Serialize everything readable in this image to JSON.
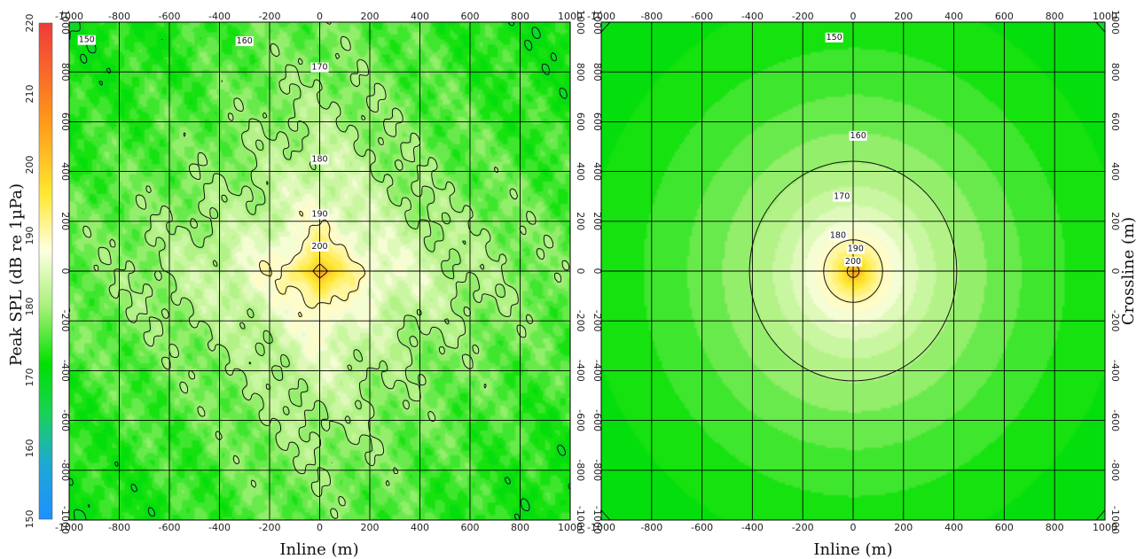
{
  "colorbar": {
    "label": "Peak SPL (dB re 1µPa)",
    "ticks": [
      "150",
      "160",
      "170",
      "180",
      "190",
      "200",
      "210",
      "220"
    ],
    "min": 150,
    "max": 220,
    "stops": [
      {
        "v": 150,
        "color": "#1e90ff"
      },
      {
        "v": 158,
        "color": "#1fa8d2"
      },
      {
        "v": 165,
        "color": "#19d258"
      },
      {
        "v": 172,
        "color": "#00e000"
      },
      {
        "v": 180,
        "color": "#a8f07a"
      },
      {
        "v": 188,
        "color": "#ffffe0"
      },
      {
        "v": 196,
        "color": "#ffe830"
      },
      {
        "v": 206,
        "color": "#ff9a1a"
      },
      {
        "v": 220,
        "color": "#f03a3a"
      }
    ]
  },
  "chart_data": [
    {
      "type": "heatmap",
      "name": "left-panel",
      "xlabel": "Inline (m)",
      "ylabel": "",
      "xlim": [
        -1000,
        1000
      ],
      "ylim": [
        -1000,
        1000
      ],
      "xticks": [
        "-1000",
        "-800",
        "-600",
        "-400",
        "-200",
        "0",
        "200",
        "400",
        "600",
        "800",
        "1000"
      ],
      "yticks": [
        "-1000",
        "-800",
        "-600",
        "-400",
        "-200",
        "0",
        "200",
        "400",
        "600",
        "800",
        "1000"
      ],
      "grid": true,
      "shape": "star",
      "source_level": 206,
      "contour_levels": [
        150,
        160,
        170,
        180,
        190,
        200
      ],
      "contour_labels": [
        {
          "text": "150",
          "x": -930,
          "y": 930
        },
        {
          "text": "160",
          "x": -300,
          "y": 925
        },
        {
          "text": "170",
          "x": 0,
          "y": 820
        },
        {
          "text": "180",
          "x": 0,
          "y": 450
        },
        {
          "text": "190",
          "x": 0,
          "y": 230
        },
        {
          "text": "200",
          "x": 0,
          "y": 100
        }
      ]
    },
    {
      "type": "heatmap",
      "name": "right-panel",
      "xlabel": "Inline (m)",
      "ylabel": "Crossline (m)",
      "xlim": [
        -1000,
        1000
      ],
      "ylim": [
        -1000,
        1000
      ],
      "xticks": [
        "-1000",
        "-800",
        "-600",
        "-400",
        "-200",
        "0",
        "200",
        "400",
        "600",
        "800",
        "1000"
      ],
      "yticks": [
        "-1000",
        "-800",
        "-600",
        "-400",
        "-200",
        "0",
        "200",
        "400",
        "600",
        "800",
        "1000"
      ],
      "grid": true,
      "shape": "circular",
      "source_level": 206,
      "contour_levels": [
        150,
        160,
        170,
        180,
        190,
        200
      ],
      "contour_labels": [
        {
          "text": "150",
          "x": -75,
          "y": 940
        },
        {
          "text": "160",
          "x": 20,
          "y": 545
        },
        {
          "text": "170",
          "x": -45,
          "y": 300
        },
        {
          "text": "180",
          "x": -60,
          "y": 145
        },
        {
          "text": "190",
          "x": 10,
          "y": 90
        },
        {
          "text": "200",
          "x": 0,
          "y": 40
        }
      ]
    }
  ]
}
